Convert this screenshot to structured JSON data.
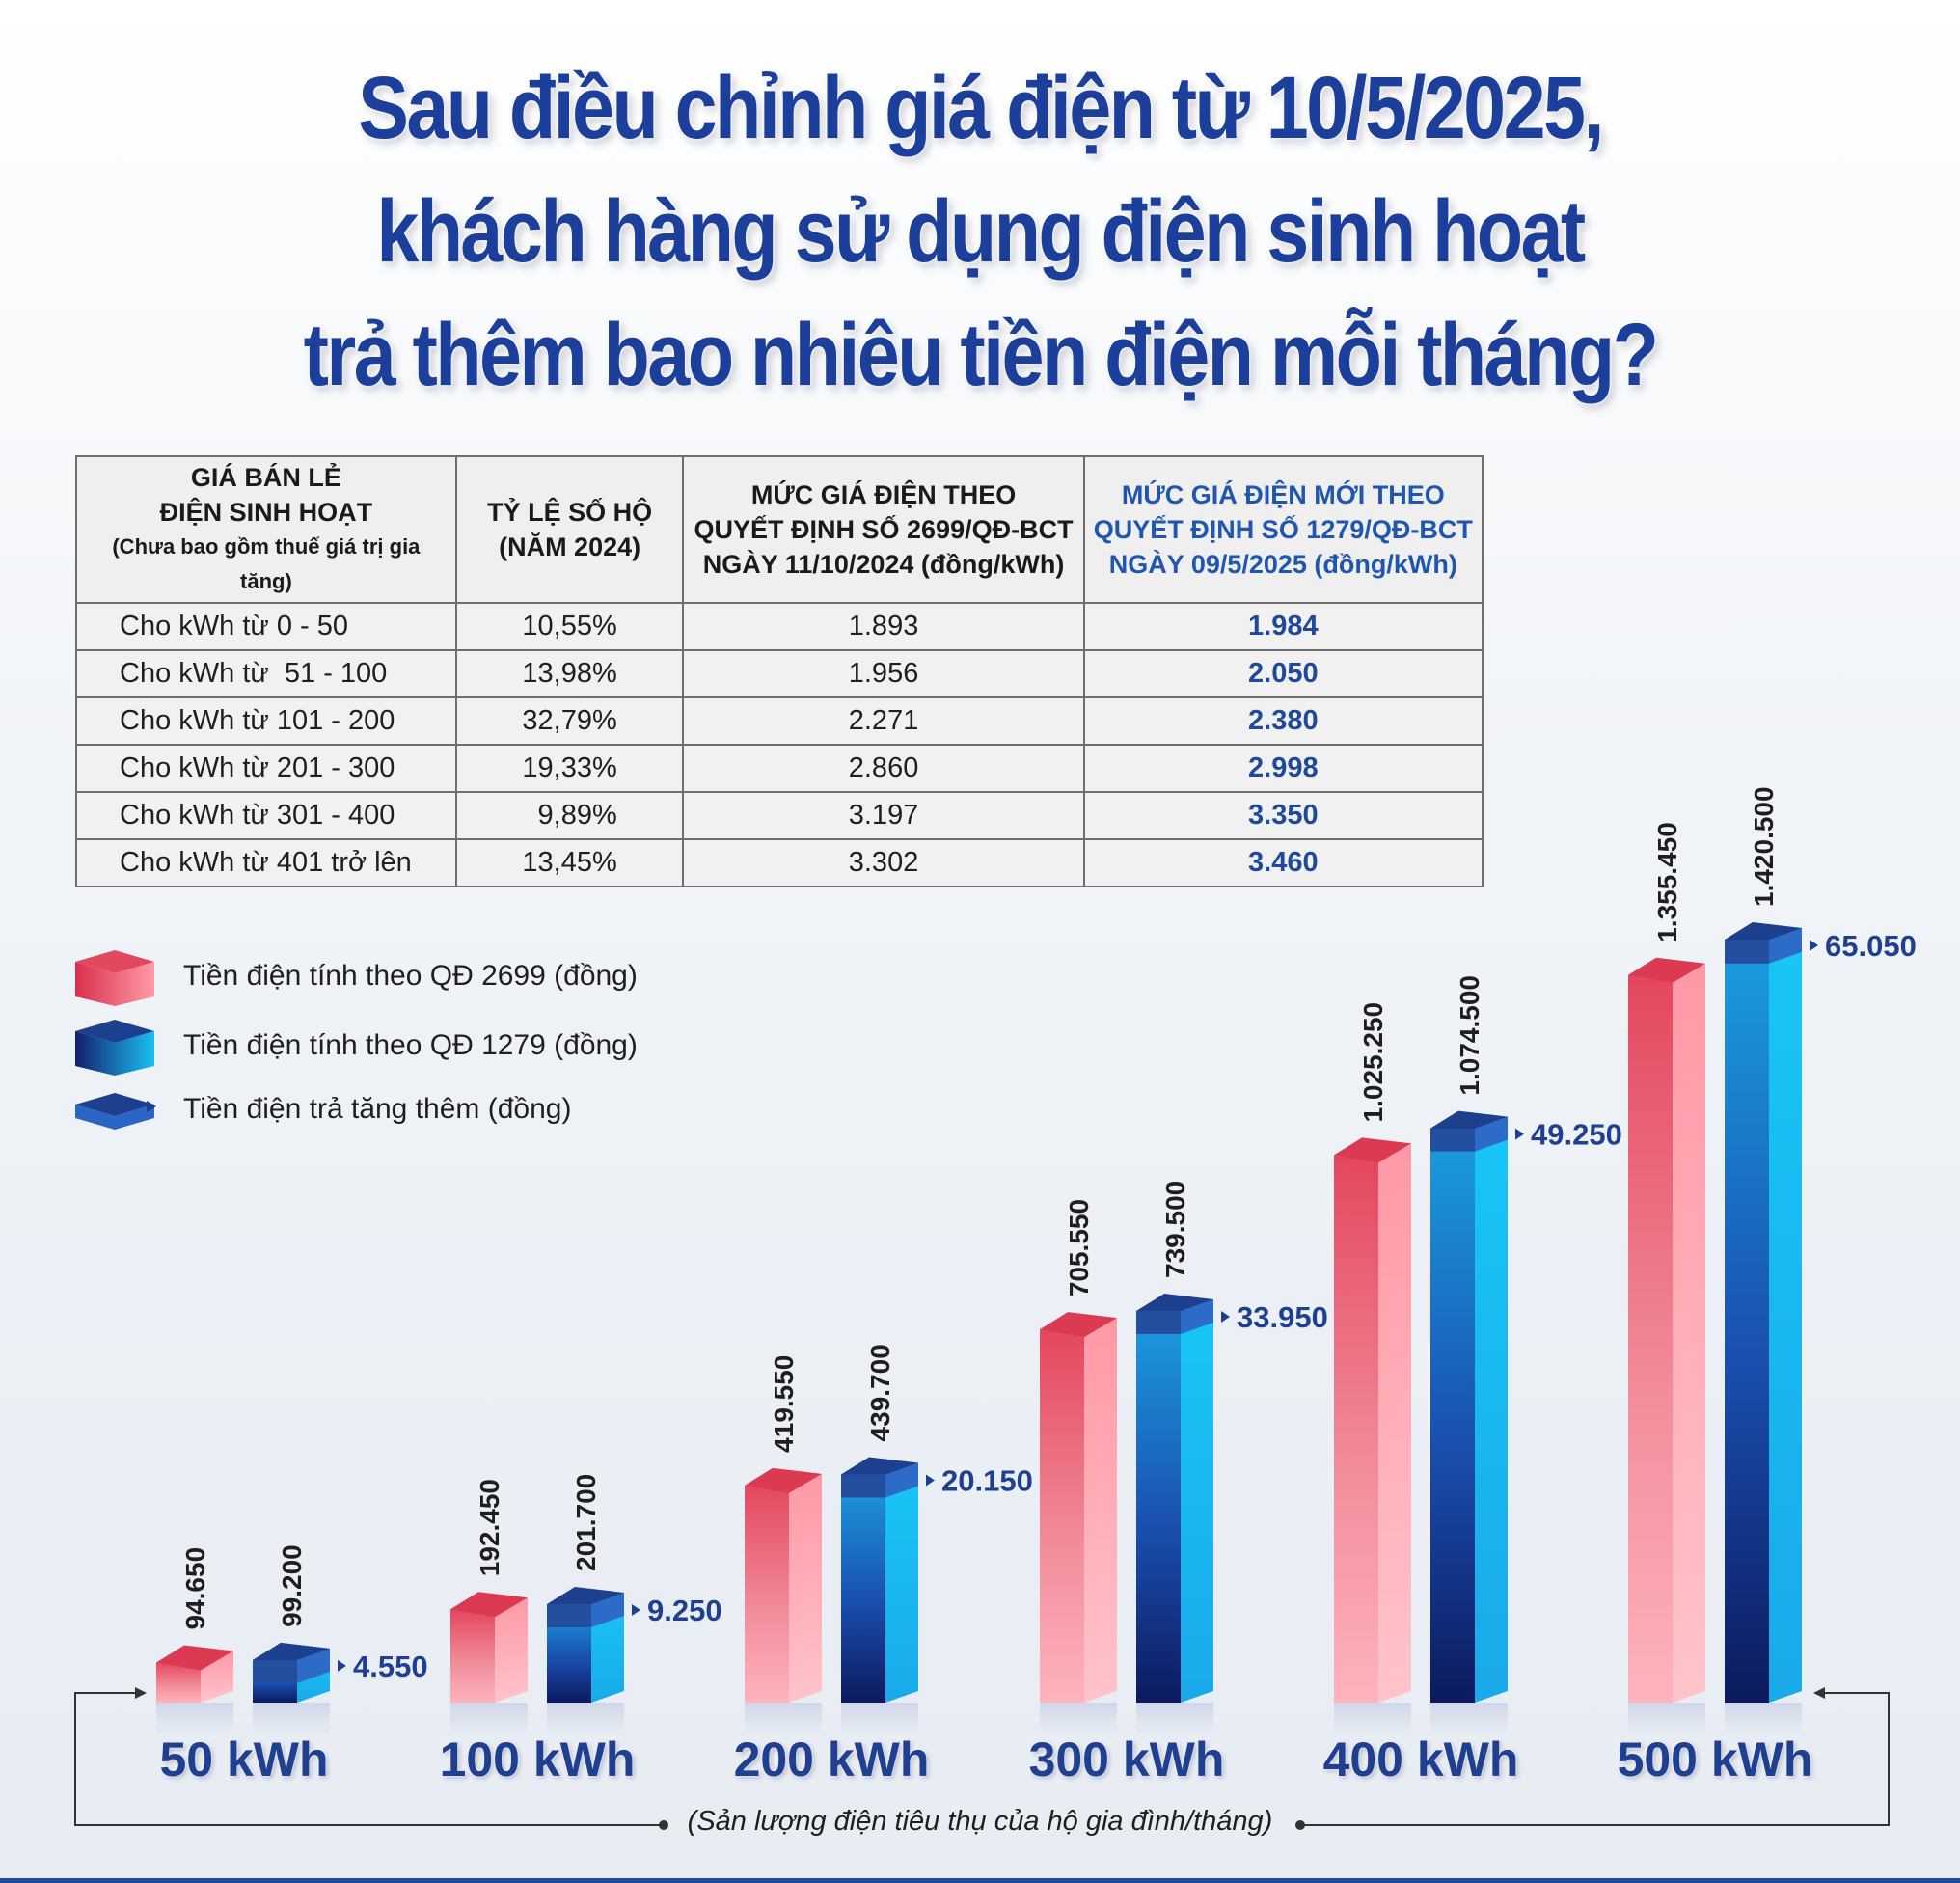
{
  "title_lines": [
    "Sau điều chỉnh giá điện từ 10/5/2025,",
    "khách hàng sử dụng điện sinh hoạt",
    "trả thêm bao nhiêu tiền điện mỗi tháng?"
  ],
  "table": {
    "headers": [
      {
        "lines": [
          "GIÁ BÁN LẺ",
          "ĐIỆN SINH HOẠT"
        ],
        "note": "(Chưa bao gồm thuế giá trị gia tăng)"
      },
      {
        "lines": [
          "TỶ LỆ SỐ HỘ",
          "(NĂM 2024)"
        ]
      },
      {
        "lines": [
          "MỨC GIÁ ĐIỆN THEO",
          "QUYẾT ĐỊNH SỐ 2699/QĐ-BCT",
          "NGÀY 11/10/2024 (đồng/kWh)"
        ]
      },
      {
        "lines": [
          "MỨC GIÁ ĐIỆN MỚI THEO",
          "QUYẾT ĐỊNH SỐ 1279/QĐ-BCT",
          "NGÀY 09/5/2025 (đồng/kWh)"
        ]
      }
    ],
    "rows": [
      [
        "Cho kWh từ 0 - 50",
        "10,55%",
        "1.893",
        "1.984"
      ],
      [
        "Cho kWh từ  51 - 100",
        "13,98%",
        "1.956",
        "2.050"
      ],
      [
        "Cho kWh từ 101 - 200",
        "32,79%",
        "2.271",
        "2.380"
      ],
      [
        "Cho kWh từ 201 - 300",
        "19,33%",
        "2.860",
        "2.998"
      ],
      [
        "Cho kWh từ 301 - 400",
        "  9,89%",
        "3.197",
        "3.350"
      ],
      [
        "Cho kWh từ 401 trở lên",
        "13,45%",
        "3.302",
        "3.460"
      ]
    ]
  },
  "legend": [
    "Tiền điện tính theo QĐ 2699 (đồng)",
    "Tiền điện tính theo QĐ 1279 (đồng)",
    "Tiền điện trả tăng thêm (đồng)"
  ],
  "chart_data": {
    "type": "bar",
    "categories": [
      "50 kWh",
      "100 kWh",
      "200 kWh",
      "300 kWh",
      "400 kWh",
      "500 kWh"
    ],
    "series": [
      {
        "name": "Tiền điện tính theo QĐ 2699 (đồng)",
        "values": [
          94650,
          192450,
          419550,
          705550,
          1025250,
          1355450
        ],
        "labels": [
          "94.650",
          "192.450",
          "419.550",
          "705.550",
          "1.025.250",
          "1.355.450"
        ]
      },
      {
        "name": "Tiền điện tính theo QĐ 1279 (đồng)",
        "values": [
          99200,
          201700,
          439700,
          739500,
          1074500,
          1420500
        ],
        "labels": [
          "99.200",
          "201.700",
          "439.700",
          "739.500",
          "1.074.500",
          "1.420.500"
        ]
      },
      {
        "name": "Tiền điện trả tăng thêm (đồng)",
        "values": [
          4550,
          9250,
          20150,
          33950,
          49250,
          65050
        ],
        "labels": [
          "4.550",
          "9.250",
          "20.150",
          "33.950",
          "49.250",
          "65.050"
        ]
      }
    ],
    "xlabel": "(Sản lượng điện tiêu thụ của hộ gia đình/tháng)",
    "colors": {
      "old": "#d8304c",
      "new": "#1ab3ea",
      "increase": "#1c3f8e"
    }
  }
}
